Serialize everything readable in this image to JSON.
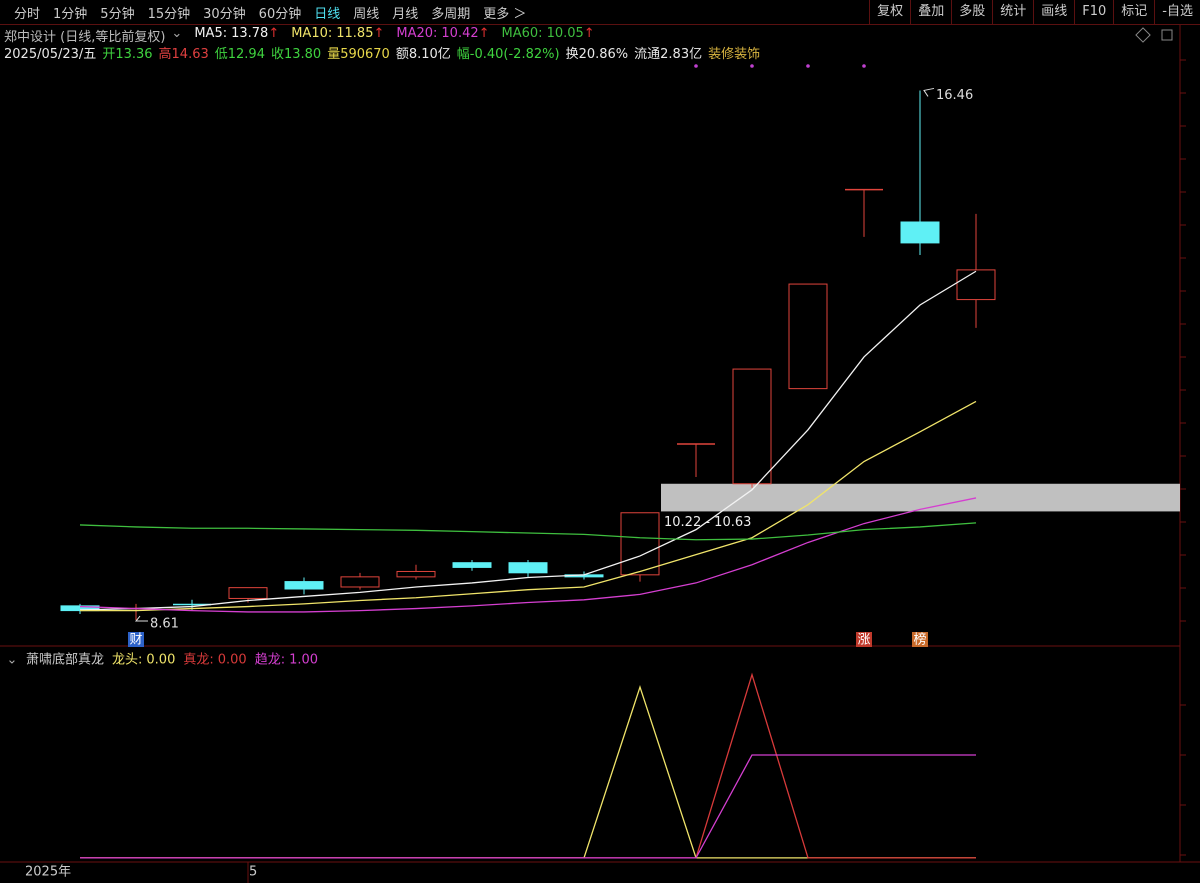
{
  "toolbar": {
    "periods": [
      "分时",
      "1分钟",
      "5分钟",
      "15分钟",
      "30分钟",
      "60分钟",
      "日线",
      "周线",
      "月线",
      "多周期",
      "更多 ＞"
    ],
    "active_index": 6,
    "tools": [
      "复权",
      "叠加",
      "多股",
      "统计",
      "画线",
      "F10",
      "标记",
      "-自选"
    ]
  },
  "info": {
    "title": "郑中设计 (日线,等比前复权)",
    "ma": [
      {
        "label": "MA5:",
        "value": "13.78",
        "trend": "↑",
        "color": "#f2f2f2",
        "values": [
          8.76,
          8.78,
          8.81,
          8.9,
          8.96,
          9.02,
          9.1,
          9.16,
          9.24,
          9.28,
          9.56,
          9.95,
          10.54,
          11.43,
          12.51,
          13.28,
          13.78
        ]
      },
      {
        "label": "MA10:",
        "value": "11.85",
        "trend": "↑",
        "color": "#f0e46a",
        "values": [
          8.75,
          8.75,
          8.78,
          8.81,
          8.85,
          8.9,
          8.94,
          9.0,
          9.06,
          9.1,
          9.33,
          9.58,
          9.83,
          10.32,
          10.96,
          11.4,
          11.85
        ]
      },
      {
        "label": "MA20:",
        "value": "10.42",
        "trend": "↑",
        "color": "#d43fd0",
        "values": [
          8.81,
          8.78,
          8.75,
          8.73,
          8.73,
          8.75,
          8.78,
          8.82,
          8.87,
          8.91,
          8.99,
          9.16,
          9.43,
          9.76,
          10.04,
          10.25,
          10.42
        ]
      },
      {
        "label": "MA60:",
        "value": "10.05",
        "trend": "↑",
        "color": "#3fbf3f",
        "values": [
          10.02,
          9.99,
          9.97,
          9.97,
          9.96,
          9.95,
          9.94,
          9.92,
          9.9,
          9.88,
          9.83,
          9.8,
          9.81,
          9.87,
          9.95,
          9.99,
          10.05
        ]
      }
    ],
    "quote": [
      {
        "text": "2025/05/23/五",
        "color": "#e8e8e8"
      },
      {
        "text": "开13.36",
        "color": "#3fd33f"
      },
      {
        "text": "高14.63",
        "color": "#e04040"
      },
      {
        "text": "低12.94",
        "color": "#3fd33f"
      },
      {
        "text": "收13.80",
        "color": "#3fd33f"
      },
      {
        "text": "量590670",
        "color": "#e8d84a"
      },
      {
        "text": "额8.10亿",
        "color": "#e8e8e8"
      },
      {
        "text": "幅-0.40(-2.82%)",
        "color": "#3fd33f"
      },
      {
        "text": "换20.86%",
        "color": "#e8e8e8"
      },
      {
        "text": "流通2.83亿",
        "color": "#e8e8e8"
      },
      {
        "text": "装修装饰",
        "color": "#d8b440"
      }
    ]
  },
  "main_chart": {
    "type": "candlestick",
    "ylim": [
      8.24,
      17.43
    ],
    "up_color": "#e0453c",
    "down_color": "#5ff0f5",
    "candles": {
      "open": [
        8.82,
        8.78,
        8.84,
        8.93,
        9.18,
        9.1,
        9.25,
        9.46,
        9.46,
        9.28,
        9.28,
        11.22,
        10.63,
        12.04,
        14.99,
        14.51,
        13.36
      ],
      "high": [
        8.85,
        8.85,
        8.91,
        9.09,
        9.24,
        9.31,
        9.43,
        9.5,
        9.5,
        9.33,
        10.2,
        11.22,
        12.33,
        13.59,
        14.99,
        16.46,
        14.63
      ],
      "low": [
        8.7,
        8.61,
        8.76,
        8.87,
        8.99,
        9.06,
        9.21,
        9.34,
        9.25,
        9.21,
        9.18,
        10.73,
        10.57,
        12.04,
        14.29,
        14.02,
        12.94
      ],
      "close": [
        8.75,
        8.8,
        8.83,
        9.09,
        9.07,
        9.25,
        9.33,
        9.39,
        9.31,
        9.25,
        10.2,
        11.22,
        12.33,
        13.59,
        14.99,
        14.2,
        13.8
      ]
    },
    "high_label_index": 15,
    "low_label_index": 1,
    "zone": {
      "low": 10.22,
      "high": 10.63,
      "label": "10.22 - 10.63",
      "start_index": 11
    },
    "markers": [
      {
        "index": 1,
        "text": "财",
        "color": "#2d62c8"
      },
      {
        "index": 14,
        "text": "涨",
        "color": "#c0392b"
      },
      {
        "index": 15,
        "text": "榜",
        "color": "#c86a2a"
      }
    ],
    "signals": [
      11,
      12,
      13,
      14
    ]
  },
  "indicator": {
    "title": "萧啸底部真龙",
    "ylim": [
      -0.04,
      2.02
    ],
    "series": [
      {
        "name": "龙头:",
        "value": "0.00",
        "color": "#f0e46a",
        "values": [
          0,
          0,
          0,
          0,
          0,
          0,
          0,
          0,
          0,
          0,
          1.66,
          0,
          0,
          0,
          0,
          0,
          0
        ]
      },
      {
        "name": "真龙:",
        "value": "0.00",
        "color": "#d83a3a",
        "values": [
          0,
          0,
          0,
          0,
          0,
          0,
          0,
          0,
          0,
          0,
          0,
          0,
          1.78,
          0,
          0,
          0,
          0
        ]
      },
      {
        "name": "趋龙:",
        "value": "1.00",
        "color": "#d43fd0",
        "values": [
          0,
          0,
          0,
          0,
          0,
          0,
          0,
          0,
          0,
          0,
          0,
          0,
          1,
          1,
          1,
          1,
          1
        ]
      }
    ]
  },
  "x_axis": {
    "year": "2025年",
    "month": "5",
    "month_index": 3
  }
}
